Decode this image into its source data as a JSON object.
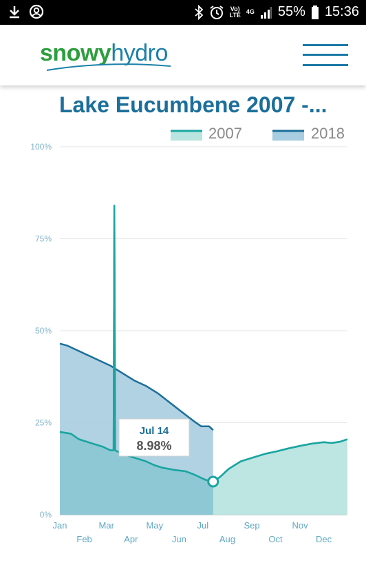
{
  "status_bar": {
    "battery": "55%",
    "time": "15:36",
    "volte": "Vo)",
    "lte": "LTE",
    "network": "4G"
  },
  "header": {
    "logo_part1": "snowy",
    "logo_part2": "hydro",
    "menu_icon": "hamburger-menu-icon"
  },
  "chart_data": {
    "type": "area",
    "title": "Lake Eucumbene 2007 -...",
    "legend": [
      "2007",
      "2018"
    ],
    "legend_placement": "top-right",
    "ylim": [
      0,
      100
    ],
    "yticks": [
      "0%",
      "25%",
      "50%",
      "75%",
      "100%"
    ],
    "xticks": [
      "Jan",
      "Feb",
      "Mar",
      "Apr",
      "May",
      "Jun",
      "Jul",
      "Aug",
      "Sep",
      "Oct",
      "Nov",
      "Dec"
    ],
    "x_unit": "day of year",
    "colors": {
      "2007_line": "#1aa5a0",
      "2007_fill": "#b9e4e0",
      "2018_line": "#1b6f9a",
      "2018_fill": "#a8cde0"
    },
    "series": [
      {
        "name": "2007",
        "x": [
          1,
          15,
          25,
          40,
          55,
          65,
          69,
          70,
          71,
          80,
          95,
          110,
          120,
          130,
          145,
          160,
          170,
          185,
          195,
          199,
          205,
          210,
          215,
          230,
          245,
          260,
          275,
          290,
          305,
          320,
          335,
          345,
          355,
          365
        ],
        "y": [
          22.5,
          22,
          20.5,
          19.5,
          18.5,
          17.5,
          17.5,
          84,
          17.5,
          16.5,
          15.5,
          14.5,
          13.5,
          12.8,
          12.2,
          11.8,
          11,
          9.5,
          8.98,
          9.5,
          10.5,
          11.5,
          12.5,
          14.5,
          15.5,
          16.5,
          17.2,
          18,
          18.7,
          19.3,
          19.7,
          19.5,
          19.8,
          20.5
        ]
      },
      {
        "name": "2018",
        "x": [
          1,
          10,
          20,
          35,
          50,
          65,
          80,
          95,
          110,
          125,
          140,
          155,
          170,
          180,
          185,
          190,
          195
        ],
        "y": [
          46.5,
          46,
          45,
          43.5,
          42,
          40.5,
          38.5,
          36.5,
          35,
          33,
          30.5,
          28,
          25.5,
          24,
          24,
          24,
          23
        ]
      }
    ],
    "tooltip": {
      "date": "Jul 14",
      "value": "8.98%"
    }
  }
}
